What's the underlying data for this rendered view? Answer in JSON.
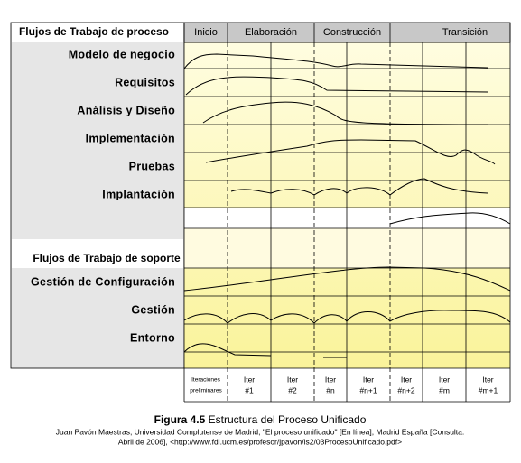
{
  "header": {
    "title": "Flujos de Trabajo de proceso"
  },
  "phases": [
    "Inicio",
    "Elaboración",
    "Construcción",
    "Transición"
  ],
  "process_workflows": [
    "Modelo de negocio",
    "Requisitos",
    "Análisis y Diseño",
    "Implementación",
    "Pruebas",
    "Implantación"
  ],
  "support_title": "Flujos de Trabajo de soporte",
  "support_workflows": [
    "Gestión de Configuración",
    "Gestión",
    "Entorno"
  ],
  "iterations": [
    [
      "Iteraciones",
      "preliminares"
    ],
    [
      "Iter",
      "#1"
    ],
    [
      "Iter",
      "#2"
    ],
    [
      "Iter",
      "#n"
    ],
    [
      "Iter",
      "#n+1"
    ],
    [
      "Iter",
      "#n+2"
    ],
    [
      "Iter",
      "#m"
    ],
    [
      "Iter",
      "#m+1"
    ]
  ],
  "caption": {
    "figure": "Figura 4.5",
    "title": "Estructura del Proceso Unificado",
    "source": [
      "Juan Pavón Maestras, Universidad Complutense de Madrid, \"El proceso unificado\" [En línea], Madrid España [Consulta:",
      "Abril de 2006], <http://www.fdi.ucm.es/profesor/jpavon/is2/03ProcesoUnificado.pdf>"
    ]
  }
}
